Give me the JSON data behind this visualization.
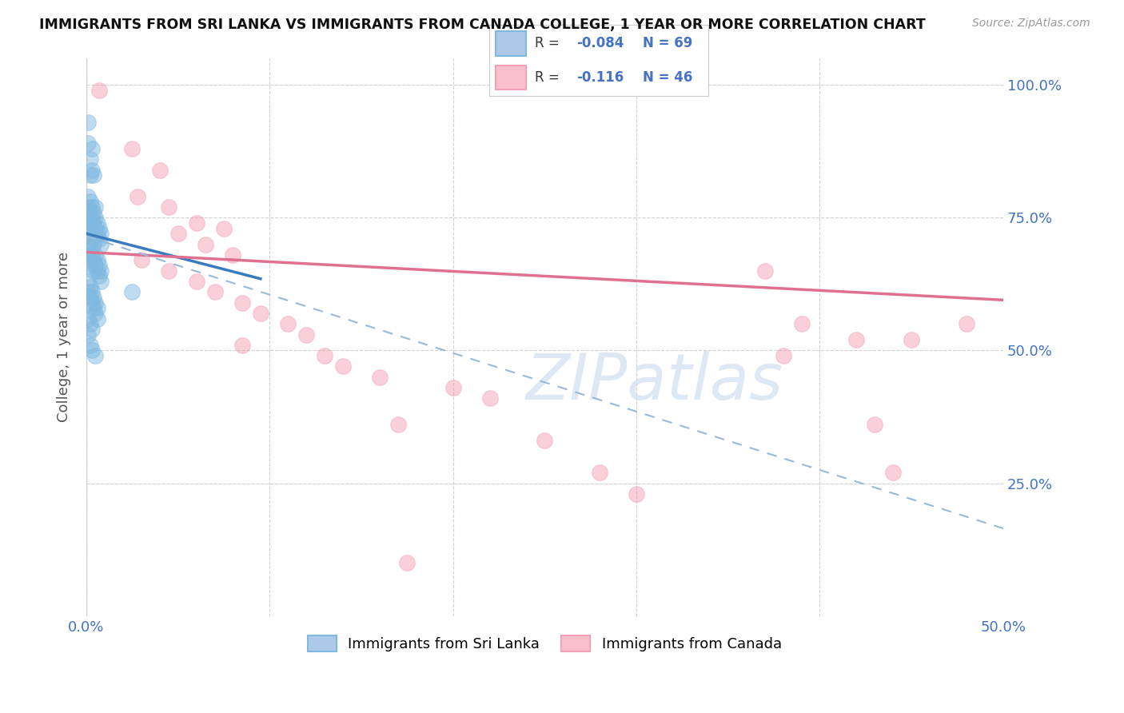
{
  "title": "IMMIGRANTS FROM SRI LANKA VS IMMIGRANTS FROM CANADA COLLEGE, 1 YEAR OR MORE CORRELATION CHART",
  "source": "Source: ZipAtlas.com",
  "ylabel": "College, 1 year or more",
  "yticks": [
    0.0,
    0.25,
    0.5,
    0.75,
    1.0
  ],
  "ytick_labels": [
    "",
    "25.0%",
    "50.0%",
    "75.0%",
    "100.0%"
  ],
  "xlim": [
    0.0,
    0.5
  ],
  "ylim": [
    0.0,
    1.05
  ],
  "watermark": "ZIPatlas",
  "sri_lanka_color": "#7fb9e0",
  "canada_color": "#f4a0b5",
  "sri_lanka_dots": [
    [
      0.001,
      0.93
    ],
    [
      0.001,
      0.89
    ],
    [
      0.002,
      0.86
    ],
    [
      0.002,
      0.83
    ],
    [
      0.003,
      0.88
    ],
    [
      0.003,
      0.84
    ],
    [
      0.004,
      0.83
    ],
    [
      0.001,
      0.79
    ],
    [
      0.001,
      0.77
    ],
    [
      0.002,
      0.78
    ],
    [
      0.002,
      0.76
    ],
    [
      0.003,
      0.77
    ],
    [
      0.003,
      0.75
    ],
    [
      0.004,
      0.76
    ],
    [
      0.004,
      0.74
    ],
    [
      0.005,
      0.77
    ],
    [
      0.005,
      0.75
    ],
    [
      0.001,
      0.75
    ],
    [
      0.001,
      0.73
    ],
    [
      0.002,
      0.74
    ],
    [
      0.002,
      0.72
    ],
    [
      0.003,
      0.73
    ],
    [
      0.003,
      0.71
    ],
    [
      0.004,
      0.72
    ],
    [
      0.004,
      0.7
    ],
    [
      0.005,
      0.73
    ],
    [
      0.005,
      0.71
    ],
    [
      0.006,
      0.74
    ],
    [
      0.006,
      0.72
    ],
    [
      0.007,
      0.73
    ],
    [
      0.007,
      0.71
    ],
    [
      0.008,
      0.72
    ],
    [
      0.008,
      0.7
    ],
    [
      0.001,
      0.7
    ],
    [
      0.001,
      0.68
    ],
    [
      0.002,
      0.69
    ],
    [
      0.002,
      0.67
    ],
    [
      0.003,
      0.68
    ],
    [
      0.003,
      0.66
    ],
    [
      0.004,
      0.67
    ],
    [
      0.004,
      0.65
    ],
    [
      0.005,
      0.68
    ],
    [
      0.005,
      0.66
    ],
    [
      0.006,
      0.67
    ],
    [
      0.006,
      0.65
    ],
    [
      0.007,
      0.66
    ],
    [
      0.007,
      0.64
    ],
    [
      0.008,
      0.65
    ],
    [
      0.008,
      0.63
    ],
    [
      0.001,
      0.63
    ],
    [
      0.001,
      0.61
    ],
    [
      0.002,
      0.62
    ],
    [
      0.002,
      0.6
    ],
    [
      0.003,
      0.61
    ],
    [
      0.003,
      0.59
    ],
    [
      0.004,
      0.6
    ],
    [
      0.004,
      0.58
    ],
    [
      0.005,
      0.59
    ],
    [
      0.005,
      0.57
    ],
    [
      0.006,
      0.58
    ],
    [
      0.006,
      0.56
    ],
    [
      0.001,
      0.56
    ],
    [
      0.002,
      0.55
    ],
    [
      0.003,
      0.54
    ],
    [
      0.001,
      0.53
    ],
    [
      0.002,
      0.51
    ],
    [
      0.003,
      0.5
    ],
    [
      0.005,
      0.49
    ],
    [
      0.025,
      0.61
    ]
  ],
  "canada_dots": [
    [
      0.007,
      0.99
    ],
    [
      0.025,
      0.88
    ],
    [
      0.04,
      0.84
    ],
    [
      0.028,
      0.79
    ],
    [
      0.045,
      0.77
    ],
    [
      0.06,
      0.74
    ],
    [
      0.075,
      0.73
    ],
    [
      0.05,
      0.72
    ],
    [
      0.065,
      0.7
    ],
    [
      0.08,
      0.68
    ],
    [
      0.03,
      0.67
    ],
    [
      0.045,
      0.65
    ],
    [
      0.06,
      0.63
    ],
    [
      0.07,
      0.61
    ],
    [
      0.085,
      0.59
    ],
    [
      0.095,
      0.57
    ],
    [
      0.11,
      0.55
    ],
    [
      0.12,
      0.53
    ],
    [
      0.085,
      0.51
    ],
    [
      0.13,
      0.49
    ],
    [
      0.14,
      0.47
    ],
    [
      0.16,
      0.45
    ],
    [
      0.2,
      0.43
    ],
    [
      0.22,
      0.41
    ],
    [
      0.17,
      0.36
    ],
    [
      0.25,
      0.33
    ],
    [
      0.28,
      0.27
    ],
    [
      0.3,
      0.23
    ],
    [
      0.175,
      0.1
    ],
    [
      0.39,
      0.55
    ],
    [
      0.42,
      0.52
    ],
    [
      0.45,
      0.52
    ],
    [
      0.38,
      0.49
    ],
    [
      0.43,
      0.36
    ],
    [
      0.44,
      0.27
    ],
    [
      0.37,
      0.65
    ],
    [
      0.48,
      0.55
    ]
  ],
  "sri_lanka_line": {
    "x0": 0.0,
    "y0": 0.72,
    "x1": 0.095,
    "y1": 0.635
  },
  "canada_line": {
    "x0": 0.0,
    "y0": 0.685,
    "x1": 0.5,
    "y1": 0.595
  },
  "dashed_line": {
    "x0": 0.0,
    "y0": 0.715,
    "x1": 0.5,
    "y1": 0.165
  }
}
